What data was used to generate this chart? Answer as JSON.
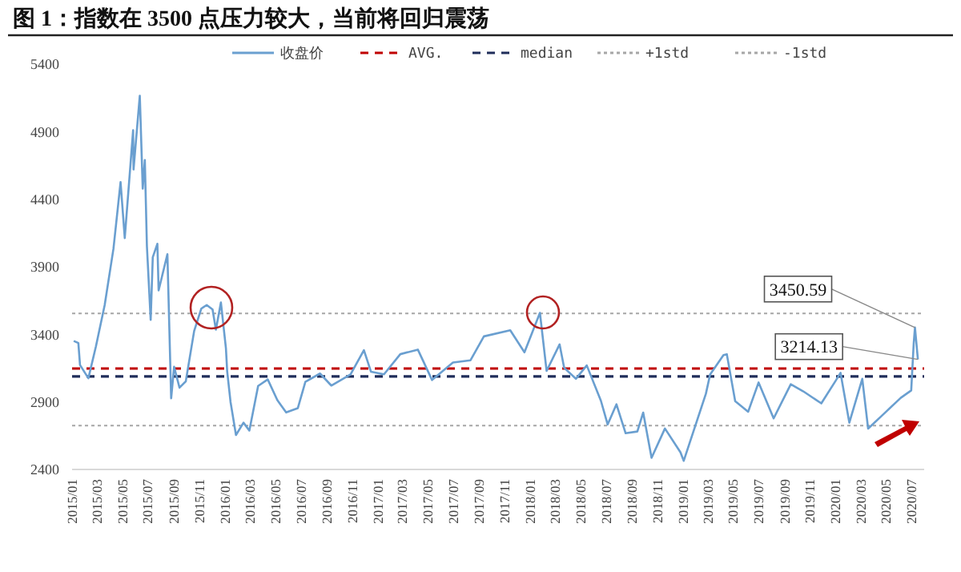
{
  "chart_data": {
    "type": "line",
    "title": "图 1：指数在 3500 点压力较大，当前将回归震荡",
    "x": [
      "2015-01-05",
      "2015-01-16",
      "2015-01-20",
      "2015-02-09",
      "2015-02-27",
      "2015-03-20",
      "2015-04-10",
      "2015-04-27",
      "2015-05-07",
      "2015-05-27",
      "2015-05-28",
      "2015-06-12",
      "2015-06-19",
      "2015-06-24",
      "2015-06-29",
      "2015-07-08",
      "2015-07-13",
      "2015-07-24",
      "2015-07-27",
      "2015-08-17",
      "2015-08-26",
      "2015-09-02",
      "2015-09-15",
      "2015-09-30",
      "2015-10-20",
      "2015-11-06",
      "2015-11-19",
      "2015-12-03",
      "2015-12-11",
      "2015-12-23",
      "2016-01-04",
      "2016-01-07",
      "2016-01-15",
      "2016-01-28",
      "2016-02-15",
      "2016-02-29",
      "2016-03-21",
      "2016-04-13",
      "2016-05-06",
      "2016-05-27",
      "2016-06-24",
      "2016-07-12",
      "2016-08-16",
      "2016-09-12",
      "2016-10-28",
      "2016-11-29",
      "2016-12-16",
      "2017-01-16",
      "2017-02-24",
      "2017-04-07",
      "2017-05-11",
      "2017-06-30",
      "2017-08-11",
      "2017-09-12",
      "2017-11-14",
      "2017-12-18",
      "2018-01-24",
      "2018-02-09",
      "2018-03-12",
      "2018-03-23",
      "2018-04-20",
      "2018-05-16",
      "2018-06-19",
      "2018-07-05",
      "2018-07-26",
      "2018-08-17",
      "2018-09-14",
      "2018-09-28",
      "2018-10-18",
      "2018-11-19",
      "2018-12-26",
      "2019-01-03",
      "2019-02-25",
      "2019-03-07",
      "2019-04-08",
      "2019-04-16",
      "2019-05-06",
      "2019-06-06",
      "2019-07-01",
      "2019-08-06",
      "2019-09-16",
      "2019-10-16",
      "2019-11-28",
      "2019-12-31",
      "2020-01-13",
      "2020-02-03",
      "2020-03-05",
      "2020-03-19",
      "2020-04-29",
      "2020-06-05",
      "2020-06-30",
      "2020-07-06",
      "2020-07-09",
      "2020-07-16"
    ],
    "series": [
      {
        "name": "收盘价",
        "color": "#6a9fd0",
        "values": [
          3351,
          3336,
          3173,
          3075,
          3310,
          3617,
          4034,
          4527,
          4112,
          4910,
          4620,
          5166,
          4478,
          4690,
          4053,
          3507,
          3970,
          4070,
          3725,
          3993,
          2927,
          3160,
          3005,
          3052,
          3425,
          3590,
          3617,
          3584,
          3435,
          3636,
          3296,
          3125,
          2900,
          2655,
          2746,
          2688,
          3018,
          3066,
          2913,
          2822,
          2854,
          3049,
          3110,
          3021,
          3104,
          3283,
          3123,
          3104,
          3253,
          3287,
          3062,
          3192,
          3208,
          3385,
          3430,
          3267,
          3559,
          3129,
          3326,
          3152,
          3071,
          3170,
          2907,
          2733,
          2882,
          2668,
          2681,
          2821,
          2486,
          2703,
          2527,
          2464,
          2961,
          3102,
          3246,
          3253,
          2906,
          2827,
          3044,
          2778,
          3031,
          2978,
          2889,
          3050,
          3115,
          2746,
          3071,
          2702,
          2822,
          2930,
          2985,
          3332,
          3450.59,
          3214.13
        ]
      }
    ],
    "ref_lines": [
      {
        "axis": "y",
        "value": 3147,
        "label": "AVG.",
        "color": "#c00000",
        "line_style": "dashed"
      },
      {
        "axis": "y",
        "value": 3088,
        "label": "median",
        "color": "#1f2d5a",
        "line_style": "dashed"
      },
      {
        "axis": "y",
        "value": 3554,
        "label": "+1std",
        "color": "#a6a6a6",
        "line_style": "dotted"
      },
      {
        "axis": "y",
        "value": 2724,
        "label": "-1std",
        "color": "#a6a6a6",
        "line_style": "dotted"
      }
    ],
    "annotations": [
      {
        "text": "3450.59",
        "x": "2020-07-09",
        "y": 3450.59
      },
      {
        "text": "3214.13",
        "x": "2020-07-16",
        "y": 3214.13
      }
    ],
    "xlim": [
      "2015-01-01",
      "2020-07-31"
    ],
    "xticks": [
      {
        "value": "2015-01",
        "label": "2015/01"
      },
      {
        "value": "2015-03",
        "label": "2015/03"
      },
      {
        "value": "2015-05",
        "label": "2015/05"
      },
      {
        "value": "2015-07",
        "label": "2015/07"
      },
      {
        "value": "2015-09",
        "label": "2015/09"
      },
      {
        "value": "2015-11",
        "label": "2015/11"
      },
      {
        "value": "2016-01",
        "label": "2016/01"
      },
      {
        "value": "2016-03",
        "label": "2016/03"
      },
      {
        "value": "2016-05",
        "label": "2016/05"
      },
      {
        "value": "2016-07",
        "label": "2016/07"
      },
      {
        "value": "2016-09",
        "label": "2016/09"
      },
      {
        "value": "2016-11",
        "label": "2016/11"
      },
      {
        "value": "2017-01",
        "label": "2017/01"
      },
      {
        "value": "2017-03",
        "label": "2017/03"
      },
      {
        "value": "2017-05",
        "label": "2017/05"
      },
      {
        "value": "2017-07",
        "label": "2017/07"
      },
      {
        "value": "2017-09",
        "label": "2017/09"
      },
      {
        "value": "2017-11",
        "label": "2017/11"
      },
      {
        "value": "2018-01",
        "label": "2018/01"
      },
      {
        "value": "2018-03",
        "label": "2018/03"
      },
      {
        "value": "2018-05",
        "label": "2018/05"
      },
      {
        "value": "2018-07",
        "label": "2018/07"
      },
      {
        "value": "2018-09",
        "label": "2018/09"
      },
      {
        "value": "2018-11",
        "label": "2018/11"
      },
      {
        "value": "2019-01",
        "label": "2019/01"
      },
      {
        "value": "2019-03",
        "label": "2019/03"
      },
      {
        "value": "2019-05",
        "label": "2019/05"
      },
      {
        "value": "2019-07",
        "label": "2019/07"
      },
      {
        "value": "2019-09",
        "label": "2019/09"
      },
      {
        "value": "2019-11",
        "label": "2019/11"
      },
      {
        "value": "2020-01",
        "label": "2020/01"
      },
      {
        "value": "2020-03",
        "label": "2020/03"
      },
      {
        "value": "2020-05",
        "label": "2020/05"
      },
      {
        "value": "2020-07",
        "label": "2020/07"
      }
    ],
    "ylim": [
      2400,
      5400
    ],
    "yticks": [
      2400,
      2900,
      3400,
      3900,
      4400,
      4900,
      5400
    ],
    "legend": "top",
    "grid": false,
    "marker": "none",
    "line_style": "solid"
  }
}
